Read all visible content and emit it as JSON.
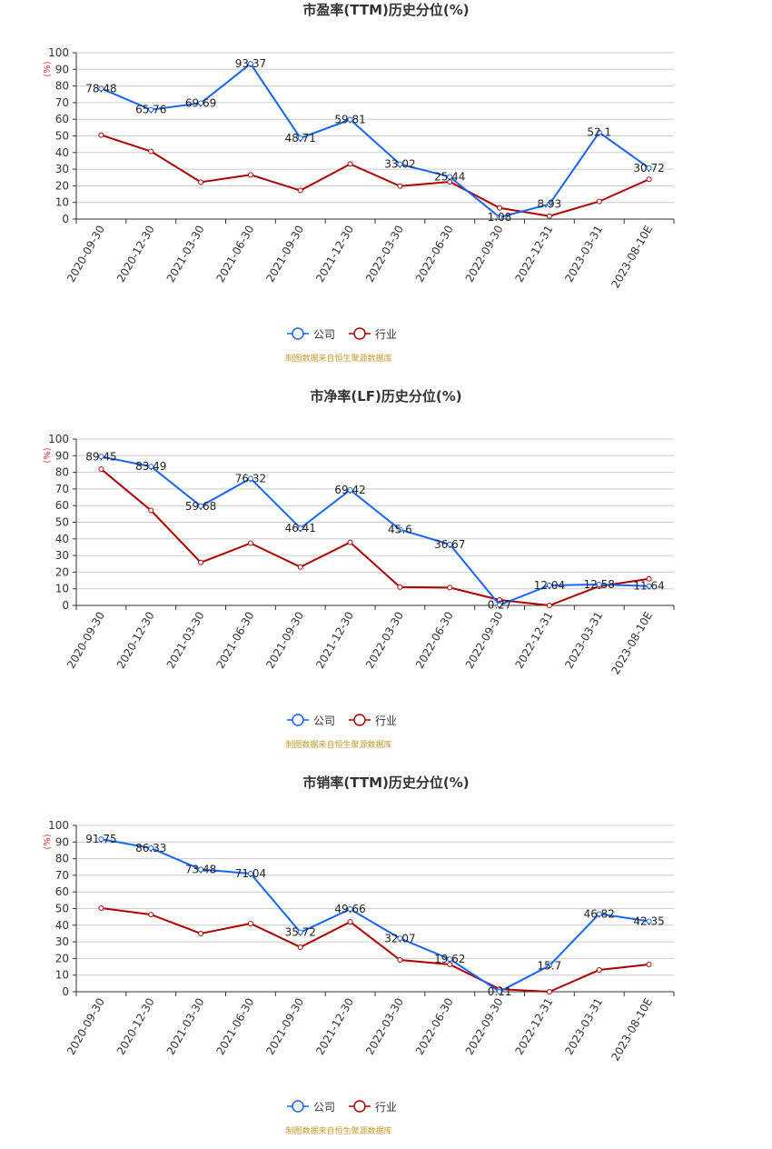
{
  "legend": {
    "company": "公司",
    "industry": "行业"
  },
  "source_note": "制图数据来自恒生聚源数据库",
  "colors": {
    "company": "#1565ff",
    "industry": "#b00000",
    "note": "#c8962e",
    "unit": "#e23030"
  },
  "chart_data": [
    {
      "type": "line",
      "title": "市盈率(TTM)历史分位(%)",
      "ylabel": "(%)",
      "ylim": [
        0,
        100
      ],
      "yticks": [
        0,
        10,
        20,
        30,
        40,
        50,
        60,
        70,
        80,
        90,
        100
      ],
      "grid": true,
      "legend_position": "bottom",
      "categories": [
        "2020-09-30",
        "2020-12-30",
        "2021-03-30",
        "2021-06-30",
        "2021-09-30",
        "2021-12-30",
        "2022-03-30",
        "2022-06-30",
        "2022-09-30",
        "2022-12-31",
        "2023-03-31",
        "2023-08-10E"
      ],
      "series": [
        {
          "name": "公司",
          "values": [
            78.48,
            65.76,
            69.69,
            93.37,
            48.71,
            59.81,
            33.02,
            25.44,
            1.08,
            8.93,
            52.1,
            30.72
          ],
          "labels": [
            "78.48",
            "65.76",
            "69.69",
            "93.37",
            "48.71",
            "59.81",
            "33.02",
            "25.44",
            "1.08",
            "8.93",
            "52.1",
            "30.72"
          ]
        },
        {
          "name": "行业",
          "values": [
            50.5,
            40.7,
            22.2,
            26.6,
            17.2,
            33.1,
            19.8,
            22.4,
            6.7,
            1.8,
            10.6,
            23.9
          ]
        }
      ]
    },
    {
      "type": "line",
      "title": "市净率(LF)历史分位(%)",
      "ylabel": "(%)",
      "ylim": [
        0,
        100
      ],
      "yticks": [
        0,
        10,
        20,
        30,
        40,
        50,
        60,
        70,
        80,
        90,
        100
      ],
      "grid": true,
      "legend_position": "bottom",
      "categories": [
        "2020-09-30",
        "2020-12-30",
        "2021-03-30",
        "2021-06-30",
        "2021-09-30",
        "2021-12-30",
        "2022-03-30",
        "2022-06-30",
        "2022-09-30",
        "2022-12-31",
        "2023-03-31",
        "2023-08-10E"
      ],
      "series": [
        {
          "name": "公司",
          "values": [
            89.45,
            83.49,
            59.68,
            76.32,
            46.41,
            69.42,
            45.6,
            36.67,
            0.27,
            12.04,
            12.58,
            11.64
          ],
          "labels": [
            "89.45",
            "83.49",
            "59.68",
            "76.32",
            "46.41",
            "69.42",
            "45.6",
            "36.67",
            "0.27",
            "12.04",
            "12.58",
            "11.64"
          ]
        },
        {
          "name": "行业",
          "values": [
            81.9,
            57.1,
            25.8,
            37.4,
            23.1,
            37.9,
            11,
            10.7,
            3.3,
            0,
            11.5,
            16
          ]
        }
      ]
    },
    {
      "type": "line",
      "title": "市销率(TTM)历史分位(%)",
      "ylabel": "(%)",
      "ylim": [
        0,
        100
      ],
      "yticks": [
        0,
        10,
        20,
        30,
        40,
        50,
        60,
        70,
        80,
        90,
        100
      ],
      "grid": true,
      "legend_position": "bottom",
      "categories": [
        "2020-09-30",
        "2020-12-30",
        "2021-03-30",
        "2021-06-30",
        "2021-09-30",
        "2021-12-30",
        "2022-03-30",
        "2022-06-30",
        "2022-09-30",
        "2022-12-31",
        "2023-03-31",
        "2023-08-10E"
      ],
      "series": [
        {
          "name": "公司",
          "values": [
            91.75,
            86.33,
            73.48,
            71.04,
            35.72,
            49.66,
            32.07,
            19.62,
            0.11,
            15.7,
            46.82,
            42.35
          ],
          "labels": [
            "91.75",
            "86.33",
            "73.48",
            "71.04",
            "35.72",
            "49.66",
            "32.07",
            "19.62",
            "0.11",
            "15.7",
            "46.82",
            "42.35"
          ]
        },
        {
          "name": "行业",
          "values": [
            50.3,
            46.4,
            35,
            41,
            26.8,
            42,
            19.1,
            16.4,
            1.6,
            0,
            13.1,
            16.4
          ]
        }
      ]
    }
  ]
}
